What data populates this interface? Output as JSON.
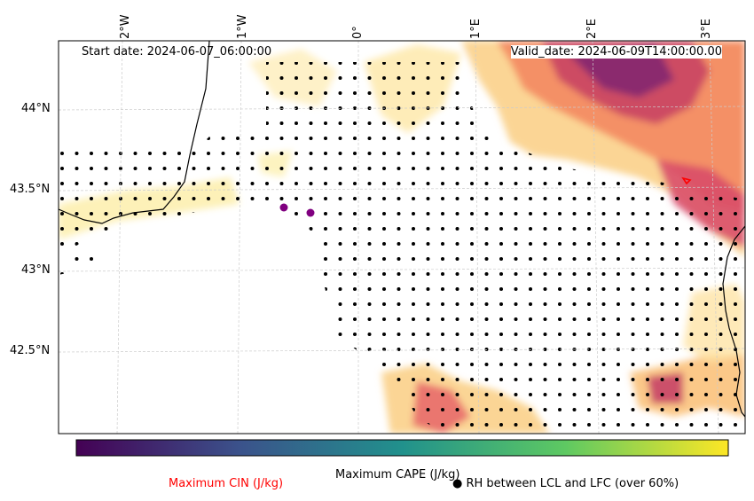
{
  "header": {
    "start_date": "Start date: 2024-06-07_06:00:00",
    "valid_date": "Valid_date: 2024-06-09T14:00:00.00"
  },
  "axes": {
    "lat_ticks": [
      "44°N",
      "43.5°N",
      "43°N",
      "42.5°N"
    ],
    "lon_ticks": [
      "2°W",
      "1°W",
      "0°",
      "1°E",
      "2°E",
      "3°E"
    ]
  },
  "legend": {
    "colorbar_label": "Maximum CAPE (J/kg)",
    "cin_label": "Maximum CIN (J/kg)",
    "cin_color": "#ff0000",
    "rh_label": "RH between LCL and LFC (over 60%)",
    "rh_symbol": "●",
    "colormap": [
      "#440154",
      "#3b528b",
      "#21918c",
      "#5ec962",
      "#fde725"
    ]
  },
  "markers": [
    {
      "name": "purple-point-a",
      "color": "#800080"
    },
    {
      "name": "purple-point-b",
      "color": "#800080"
    }
  ]
}
